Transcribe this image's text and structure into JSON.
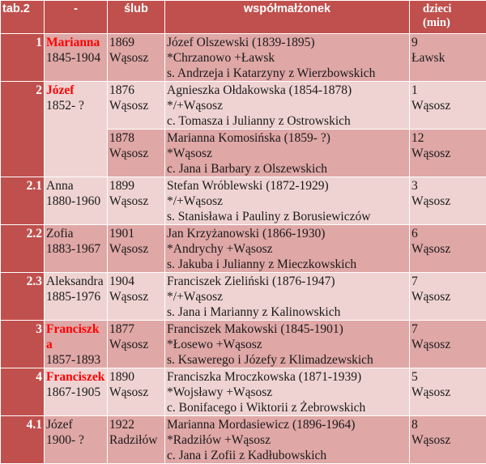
{
  "table": {
    "header": {
      "col_idx": "tab.2",
      "col_name": "-",
      "col_wedding": "ślub",
      "col_spouse": "współmałżonek",
      "col_children_1": "dzieci",
      "col_children_2": "(min)"
    },
    "rows": [
      {
        "idx": "1",
        "name_1": "Marianna",
        "name_2": "1845-1904",
        "wed_1": "1869",
        "wed_2": "Wąsosz",
        "spouse_1": "Józef Olszewski (1839-1895)",
        "spouse_2": "*Chrzanowo +Ławsk",
        "spouse_3": "s. Andrzeja i Katarzyny z Wierzbowskich",
        "kids_1": "9",
        "kids_2": "Ławsk"
      },
      {
        "idx": "2",
        "name_1": "Józef",
        "name_2": "1852- ?",
        "wed_1": "1876",
        "wed_2": "Wąsosz",
        "spouse_1": "Agnieszka Ołdakowska (1854-1878)",
        "spouse_2": "*/+Wąsosz",
        "spouse_3": "c. Tomasza i Julianny z Ostrowskich",
        "kids_1": "1",
        "kids_2": "Wąsosz"
      },
      {
        "wed_1": "1878",
        "wed_2": "Wąsosz",
        "spouse_1": "Marianna Komosińska (1859- ?)",
        "spouse_2": "*Wąsosz",
        "spouse_3": "c. Jana i Barbary z Olszewskich",
        "kids_1": "12",
        "kids_2": "Wąsosz"
      },
      {
        "idx": "2.1",
        "name_1": "Anna",
        "name_2": "1880-1960",
        "wed_1": "1899",
        "wed_2": "Wąsosz",
        "spouse_1": "Stefan Wróblewski (1872-1929)",
        "spouse_2": "*/+Wąsosz",
        "spouse_3": "s. Stanisława i Pauliny z Borusiewiczów",
        "kids_1": "3",
        "kids_2": "Wąsosz"
      },
      {
        "idx": "2.2",
        "name_1": "Zofia",
        "name_2": "1883-1967",
        "wed_1": "1901",
        "wed_2": "Wąsosz",
        "spouse_1": "Jan Krzyżanowski (1866-1930)",
        "spouse_2": "*Andrychy +Wąsosz",
        "spouse_3": "s. Jakuba i Julianny z Mieczkowskich",
        "kids_1": "6",
        "kids_2": "Wąsosz"
      },
      {
        "idx": "2.3",
        "name_1": "Aleksandra",
        "name_2": "1885-1976",
        "wed_1": "1904",
        "wed_2": "Wąsosz",
        "spouse_1": "Franciszek Zieliński (1876-1947)",
        "spouse_2": "*/+Wąsosz",
        "spouse_3": "s. Jana i Marianny z Kalinowskich",
        "kids_1": "7",
        "kids_2": "Wąsosz"
      },
      {
        "idx": "3",
        "name_1": "Franciszk",
        "name_2": "a",
        "name_3": "1857-1893",
        "wed_1": "1877",
        "wed_2": "Wąsosz",
        "spouse_1": "Franciszek Makowski (1845-1901)",
        "spouse_2": "*Łosewo +Wąsosz",
        "spouse_3": "s. Ksawerego i Józefy z Klimadzewskich",
        "kids_1": "7",
        "kids_2": "Wąsosz"
      },
      {
        "idx": "4",
        "name_1": "Franciszek",
        "name_2": "1867-1905",
        "wed_1": "1890",
        "wed_2": "Wąsosz",
        "spouse_1": "Franciszka Mroczkowska (1871-1939)",
        "spouse_2": "*Wojsławy +Wąsosz",
        "spouse_3": "c. Bonifacego i Wiktorii z Żebrowskich",
        "kids_1": "5",
        "kids_2": "Wąsosz"
      },
      {
        "idx": "4.1",
        "name_1": "Józef",
        "name_2": "1900- ?",
        "wed_1": "1922",
        "wed_2": "Radziłów",
        "spouse_1": "Marianna Mordasiewicz (1896-1964)",
        "spouse_2": "*Radziłów +Wąsosz",
        "spouse_3": "c. Jana i Zofii z Kadłubowskich",
        "kids_1": "8",
        "kids_2": "Wąsosz"
      }
    ]
  }
}
